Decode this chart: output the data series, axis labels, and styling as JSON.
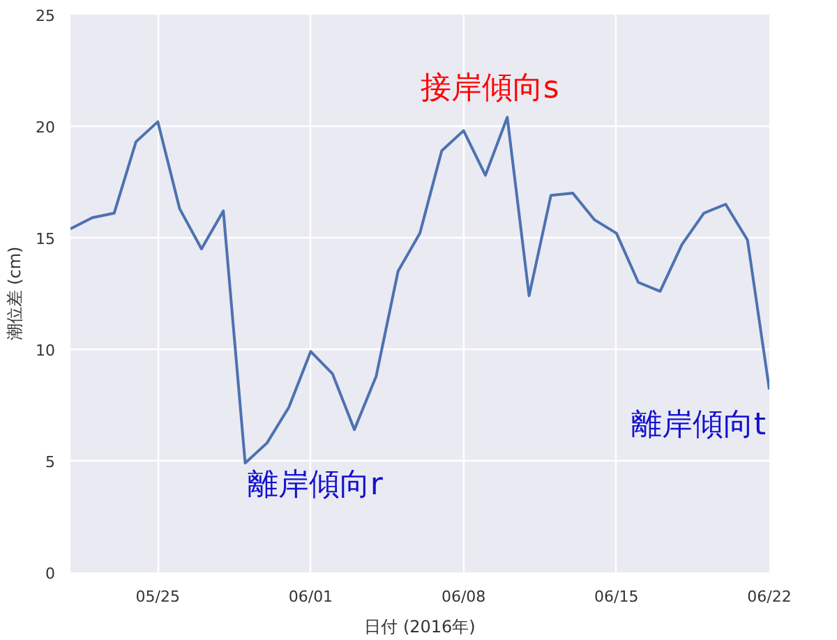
{
  "chart_data": {
    "type": "line",
    "xlabel": "日付 (2016年)",
    "ylabel": "潮位差 (cm)",
    "x": [
      "2016-05-21",
      "2016-05-22",
      "2016-05-23",
      "2016-05-24",
      "2016-05-25",
      "2016-05-26",
      "2016-05-27",
      "2016-05-28",
      "2016-05-29",
      "2016-05-30",
      "2016-05-31",
      "2016-06-01",
      "2016-06-02",
      "2016-06-03",
      "2016-06-04",
      "2016-06-05",
      "2016-06-06",
      "2016-06-07",
      "2016-06-08",
      "2016-06-09",
      "2016-06-10",
      "2016-06-11",
      "2016-06-12",
      "2016-06-13",
      "2016-06-14",
      "2016-06-15",
      "2016-06-16",
      "2016-06-17",
      "2016-06-18",
      "2016-06-19",
      "2016-06-20",
      "2016-06-21",
      "2016-06-22"
    ],
    "series": [
      {
        "color": "#4c72b0",
        "values": [
          15.4,
          15.9,
          16.1,
          19.3,
          20.2,
          16.3,
          14.5,
          16.2,
          4.9,
          5.8,
          7.4,
          9.9,
          8.9,
          6.4,
          8.8,
          13.5,
          15.2,
          18.9,
          19.8,
          17.8,
          20.4,
          12.4,
          16.9,
          17.0,
          15.8,
          15.2,
          13.0,
          12.6,
          14.7,
          16.1,
          16.5,
          14.9,
          8.2
        ]
      }
    ],
    "xlim": [
      "2016-05-21",
      "2016-06-22"
    ],
    "xticks": [
      {
        "value": "2016-05-25",
        "label": "05/25"
      },
      {
        "value": "2016-06-01",
        "label": "06/01"
      },
      {
        "value": "2016-06-08",
        "label": "06/08"
      },
      {
        "value": "2016-06-15",
        "label": "06/15"
      },
      {
        "value": "2016-06-22",
        "label": "06/22"
      }
    ],
    "ylim": [
      0,
      25
    ],
    "yticks": [
      0,
      5,
      10,
      15,
      20,
      25
    ],
    "grid": true,
    "marker": "none",
    "line_style": "solid",
    "annotations": [
      "離岸傾向r",
      "接岸傾向s",
      "離岸傾向t"
    ]
  }
}
